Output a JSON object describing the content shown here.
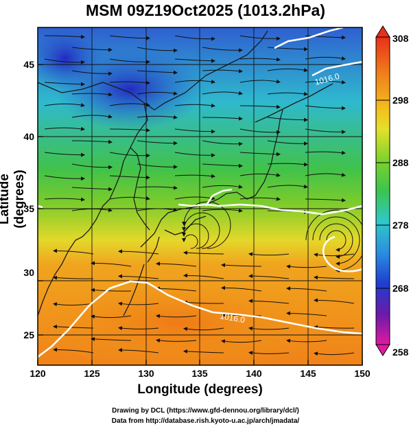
{
  "title": "MSM 09Z19Oct2025 (1013.2hPa)",
  "axes": {
    "xlabel": "Longitude (degrees)",
    "ylabel": "Latitude  (degrees)",
    "lon_range": [
      120,
      150
    ],
    "lat_range": [
      22.5,
      47.5
    ],
    "lon_ticks": [
      "120",
      "125",
      "130",
      "135",
      "140",
      "145",
      "150"
    ],
    "lat_ticks": [
      "25",
      "30",
      "35",
      "40",
      "45"
    ],
    "grid": true
  },
  "colorbar": {
    "unit_hint": "K",
    "min": 258,
    "max": 308,
    "labels": [
      "308",
      "298",
      "288",
      "278",
      "268",
      "258"
    ]
  },
  "isobars": [
    {
      "label": "1016.0",
      "lon": 138.5,
      "lat": 26.6
    },
    {
      "label": "1016.0",
      "lon": 146.8,
      "lat": 43.9
    }
  ],
  "credits": {
    "line1": "Drawing by DCL (https://www.gfd-dennou.org/library/dcl/)",
    "line2": "Data from http://database.rish.kyoto-u.ac.jp/arch/jmadata/"
  },
  "colors": {
    "cold": "#1f2fc0",
    "cool": "#2ac6d8",
    "mild": "#3fc24a",
    "warm": "#e8e42a",
    "hot": "#f08a18"
  }
}
